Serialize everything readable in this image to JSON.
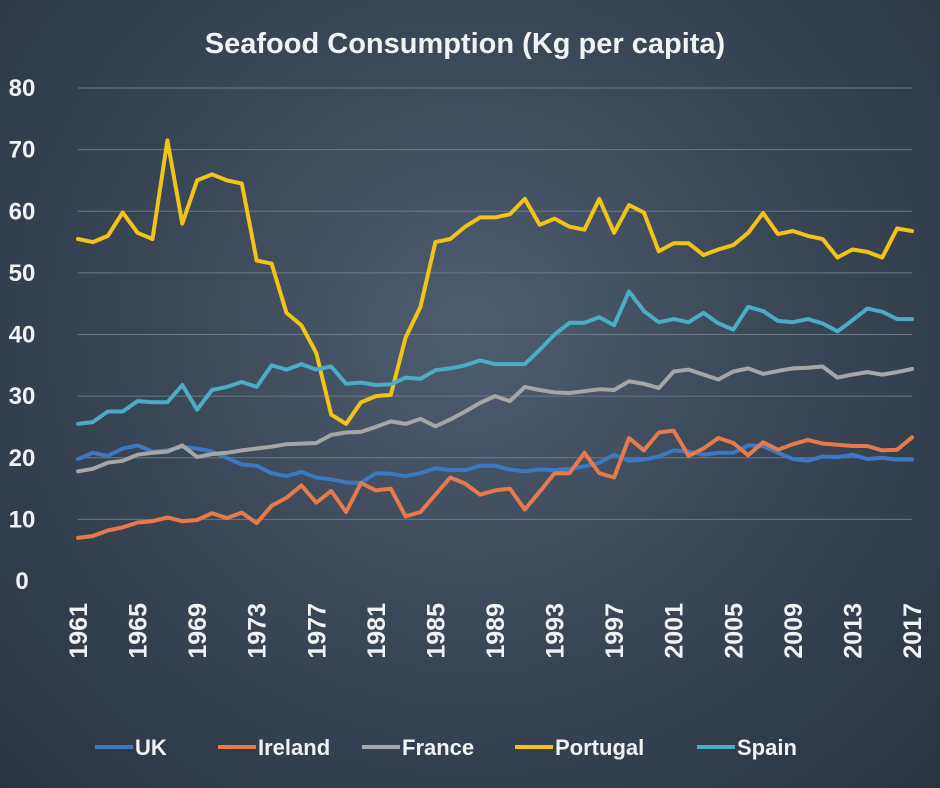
{
  "chart_data": {
    "type": "line",
    "title": "Seafood Consumption  (Kg per capita)",
    "xlabel": "",
    "ylabel": "",
    "ylim": [
      0,
      80
    ],
    "yticks": [
      "0",
      "10",
      "20",
      "30",
      "40",
      "50",
      "60",
      "70",
      "80"
    ],
    "xlim": [
      1961,
      2017
    ],
    "xticks": [
      "1961",
      "1965",
      "1969",
      "1973",
      "1977",
      "1981",
      "1985",
      "1989",
      "1993",
      "1997",
      "2001",
      "2005",
      "2009",
      "2013",
      "2017"
    ],
    "grid": true,
    "legend_position": "bottom",
    "x": [
      1961,
      1962,
      1963,
      1964,
      1965,
      1966,
      1967,
      1968,
      1969,
      1970,
      1971,
      1972,
      1973,
      1974,
      1975,
      1976,
      1977,
      1978,
      1979,
      1980,
      1981,
      1982,
      1983,
      1984,
      1985,
      1986,
      1987,
      1988,
      1989,
      1990,
      1991,
      1992,
      1993,
      1994,
      1995,
      1996,
      1997,
      1998,
      1999,
      2000,
      2001,
      2002,
      2003,
      2004,
      2005,
      2006,
      2007,
      2008,
      2009,
      2010,
      2011,
      2012,
      2013,
      2014,
      2015,
      2016,
      2017
    ],
    "series": [
      {
        "name": "UK",
        "color": "#3c78c3",
        "values": [
          19.8,
          20.8,
          20.3,
          21.5,
          22.0,
          21.0,
          21.2,
          21.8,
          21.5,
          21.0,
          20.0,
          18.9,
          18.7,
          17.5,
          17.0,
          17.7,
          16.8,
          16.5,
          16.0,
          15.9,
          17.5,
          17.4,
          17.0,
          17.5,
          18.3,
          18.0,
          18.0,
          18.7,
          18.7,
          18.1,
          17.8,
          18.1,
          18.0,
          18.2,
          18.6,
          19.2,
          20.5,
          19.5,
          19.7,
          20.2,
          21.2,
          21.0,
          20.5,
          20.8,
          20.8,
          22.0,
          21.9,
          20.8,
          19.8,
          19.5,
          20.2,
          20.1,
          20.5,
          19.8,
          20.0,
          19.7,
          19.7
        ]
      },
      {
        "name": "Ireland",
        "color": "#e8794a",
        "values": [
          7.0,
          7.3,
          8.2,
          8.7,
          9.5,
          9.7,
          10.3,
          9.7,
          9.9,
          11.0,
          10.2,
          11.1,
          9.4,
          12.2,
          13.5,
          15.5,
          12.7,
          14.6,
          11.2,
          15.9,
          14.7,
          15.0,
          10.5,
          11.2,
          14.0,
          16.8,
          15.8,
          14.0,
          14.7,
          15.0,
          11.6,
          14.5,
          17.5,
          17.5,
          20.8,
          17.5,
          16.8,
          23.2,
          21.2,
          24.1,
          24.4,
          20.3,
          21.5,
          23.2,
          22.4,
          20.4,
          22.5,
          21.3,
          22.2,
          22.9,
          22.3,
          22.1,
          21.9,
          21.9,
          21.2,
          21.3,
          23.3
        ]
      },
      {
        "name": "France",
        "color": "#a6a6a6",
        "values": [
          17.8,
          18.2,
          19.2,
          19.5,
          20.5,
          20.8,
          21.0,
          22.0,
          20.1,
          20.6,
          20.8,
          21.2,
          21.5,
          21.8,
          22.2,
          22.3,
          22.4,
          23.7,
          24.1,
          24.2,
          25.0,
          25.9,
          25.5,
          26.3,
          25.1,
          26.2,
          27.5,
          28.9,
          30.0,
          29.2,
          31.5,
          31.0,
          30.6,
          30.5,
          30.8,
          31.1,
          31.0,
          32.4,
          32.0,
          31.3,
          34.0,
          34.3,
          33.5,
          32.7,
          34.0,
          34.5,
          33.6,
          34.1,
          34.5,
          34.6,
          34.8,
          33.0,
          33.5,
          33.9,
          33.5,
          33.9,
          34.4
        ]
      },
      {
        "name": "Portugal",
        "color": "#f2c418",
        "values": [
          55.5,
          55.0,
          56.0,
          59.8,
          56.5,
          55.5,
          71.5,
          58.0,
          65.0,
          66.0,
          65.0,
          64.5,
          52.0,
          51.5,
          43.5,
          41.5,
          37.0,
          27.0,
          25.5,
          29.0,
          30.0,
          30.2,
          39.5,
          44.5,
          55.0,
          55.5,
          57.5,
          59.0,
          59.0,
          59.5,
          62.0,
          57.8,
          58.8,
          57.5,
          57.0,
          62.0,
          56.5,
          61.0,
          59.8,
          53.5,
          54.8,
          54.8,
          52.9,
          53.8,
          54.5,
          56.5,
          59.7,
          56.3,
          56.8,
          56.0,
          55.5,
          52.5,
          53.8,
          53.4,
          52.5,
          57.2,
          56.8
        ]
      },
      {
        "name": "Spain",
        "color": "#4bacc6",
        "values": [
          25.5,
          25.8,
          27.5,
          27.5,
          29.2,
          29.0,
          29.0,
          31.8,
          27.8,
          31.0,
          31.5,
          32.3,
          31.5,
          35.0,
          34.3,
          35.2,
          34.3,
          34.8,
          32.0,
          32.2,
          31.8,
          31.9,
          33.0,
          32.8,
          34.2,
          34.5,
          35.0,
          35.8,
          35.2,
          35.2,
          35.2,
          37.5,
          40.0,
          41.9,
          41.9,
          42.8,
          41.5,
          47.0,
          43.8,
          42.0,
          42.5,
          42.0,
          43.5,
          41.8,
          40.8,
          44.5,
          43.8,
          42.2,
          42.0,
          42.5,
          41.8,
          40.5,
          42.3,
          44.2,
          43.7,
          42.5,
          42.5
        ]
      }
    ]
  }
}
